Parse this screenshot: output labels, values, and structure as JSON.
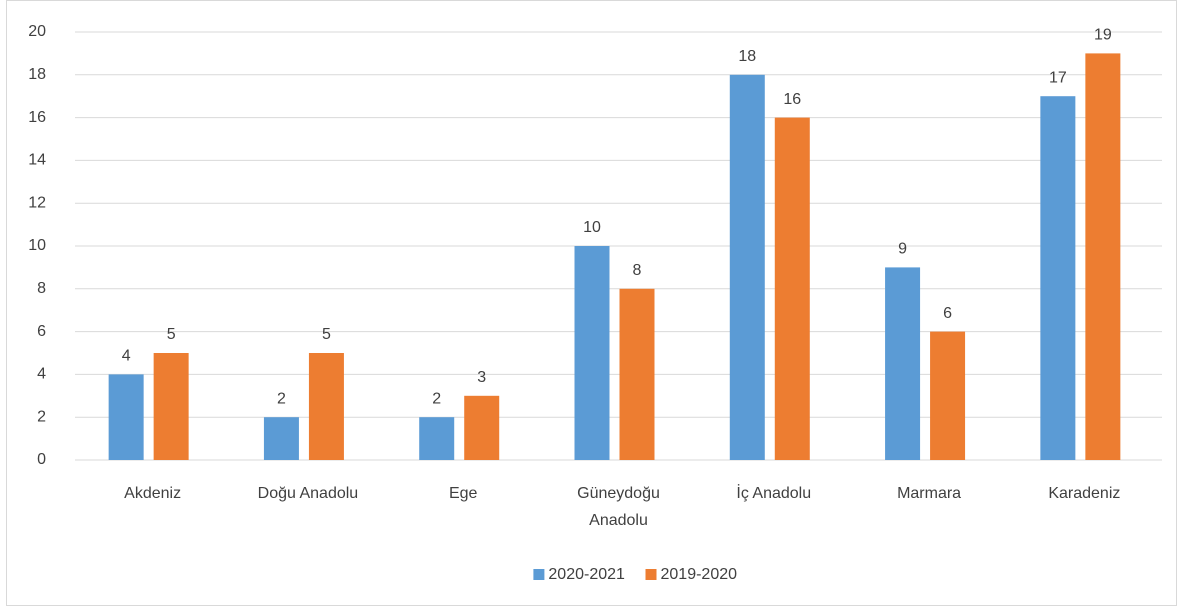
{
  "chart_data": {
    "type": "bar",
    "categories": [
      "Akdeniz",
      "Doğu Anadolu",
      "Ege",
      "Güneydoğu Anadolu",
      "İç Anadolu",
      "Marmara",
      "Karadeniz"
    ],
    "series": [
      {
        "name": "2020-2021",
        "color": "#5b9bd5",
        "values": [
          4,
          2,
          2,
          10,
          18,
          9,
          17
        ]
      },
      {
        "name": "2019-2020",
        "color": "#ed7d31",
        "values": [
          5,
          5,
          3,
          8,
          16,
          6,
          19
        ]
      }
    ],
    "ylim": [
      0,
      20
    ],
    "yticks": [
      0,
      2,
      4,
      6,
      8,
      10,
      12,
      14,
      16,
      18,
      20
    ],
    "grid": true,
    "legend": "bottom"
  }
}
